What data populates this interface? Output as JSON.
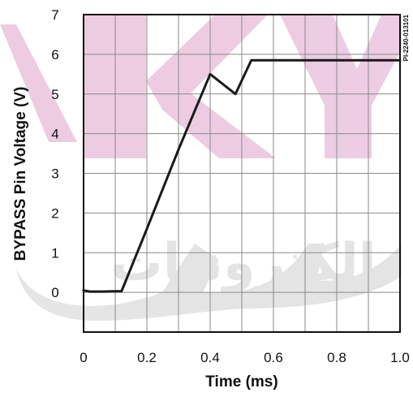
{
  "chart_data": {
    "type": "line",
    "title": "",
    "xlabel": "Time (ms)",
    "ylabel": "BYPASS Pin Voltage (V)",
    "xlim": [
      0,
      1.0
    ],
    "ylim": [
      -1,
      7
    ],
    "x_ticks": [
      0,
      0.2,
      0.4,
      0.6,
      0.8,
      1.0
    ],
    "x_tick_labels": [
      "0",
      "0.2",
      "0.4",
      "0.6",
      "0.8",
      "1.0"
    ],
    "y_ticks": [
      0,
      1,
      2,
      3,
      4,
      5,
      6,
      7
    ],
    "y_tick_labels": [
      "0",
      "1",
      "2",
      "3",
      "4",
      "5",
      "6",
      "7"
    ],
    "grid": true,
    "annotation": "PI-2240-013101",
    "series": [
      {
        "x": [
          0.0,
          0.02,
          0.06,
          0.1,
          0.12,
          0.2,
          0.3,
          0.4,
          0.48,
          0.53,
          0.6,
          0.8,
          1.0
        ],
        "values": [
          0.05,
          0.02,
          0.02,
          0.03,
          0.03,
          1.6,
          3.6,
          5.5,
          5.0,
          5.85,
          5.85,
          5.85,
          5.85
        ]
      }
    ],
    "colors": {
      "line": "#1a1a1a",
      "grid": "#8a8a8a",
      "axis": "#111111"
    }
  },
  "watermark": {
    "text": "الكترونيات",
    "colors": {
      "magenta": "#cc6fae",
      "gray": "#b5b5b5"
    }
  }
}
